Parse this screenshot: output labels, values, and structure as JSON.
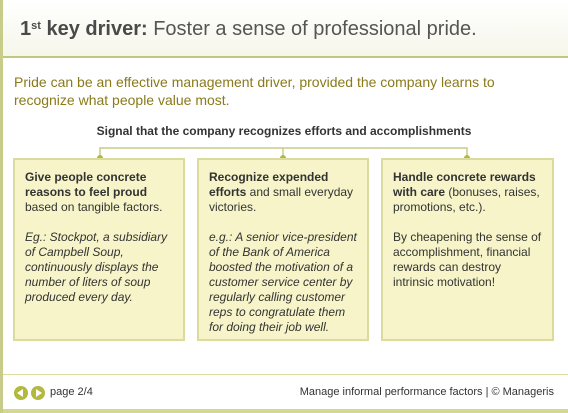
{
  "header": {
    "title_number": "1",
    "title_suffix": "st",
    "title_lead_rest": " key driver:",
    "title_rest": " Foster a sense of professional pride."
  },
  "intro": "Pride can be an effective management driver, provided the company learns to recognize what people value most.",
  "signal": "Signal that the company recognizes efforts and accomplishments",
  "cards": [
    {
      "heading": "Give people concrete reasons to feel proud",
      "body": " based on tangible factors.",
      "example": "Eg.: Stockpot, a subsidiary of Campbell Soup, continuously displays the number of liters of soup produced every day."
    },
    {
      "heading": "Recognize expended efforts",
      "body": " and small everyday victories.",
      "example": "e.g.: A senior vice-president of the Bank of America boosted the motivation of a customer service center by regularly calling customer reps to congratulate them for doing their job well."
    },
    {
      "heading": "Handle concrete rewards with care",
      "body": " (bonuses, raises, promotions, etc.).",
      "note": "By cheapening the sense of accomplishment, financial rewards can destroy intrinsic motivation!"
    }
  ],
  "footer": {
    "page": "page 2/4",
    "credits": "Manage informal performance factors | © Manageris"
  },
  "colors": {
    "accent": "#b3b83e",
    "card_bg": "#f6f4c8",
    "card_border": "#d9dc9c",
    "intro_text": "#8a7a1a"
  }
}
